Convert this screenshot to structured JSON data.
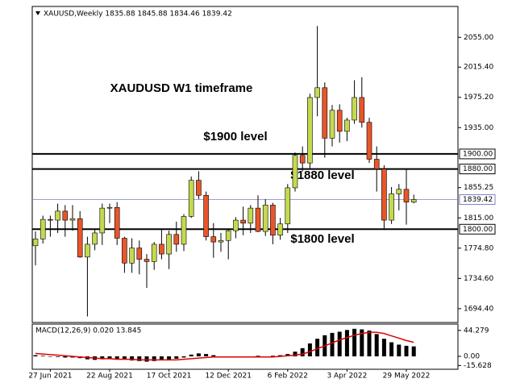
{
  "header": "XAUUSD,Weekly  1835.88 1845.88 1834.46 1839.42",
  "chart_data": [
    {
      "type": "candlestick",
      "categories": [
        null,
        null,
        "27 Jun 2021",
        null,
        null,
        null,
        null,
        null,
        null,
        null,
        "22 Aug 2021",
        null,
        null,
        null,
        null,
        null,
        null,
        null,
        "17 Oct 2021",
        null,
        null,
        null,
        null,
        null,
        null,
        null,
        "12 Dec 2021",
        null,
        null,
        null,
        null,
        null,
        null,
        null,
        "6 Feb 2022",
        null,
        null,
        null,
        null,
        null,
        null,
        null,
        "3 Apr 2022",
        null,
        null,
        null,
        null,
        null,
        null,
        null,
        "29 May 2022",
        null
      ],
      "ohlc": [
        [
          1778,
          1797,
          1752,
          1787
        ],
        [
          1787,
          1818,
          1781,
          1813
        ],
        [
          1813,
          1818,
          1790,
          1812
        ],
        [
          1812,
          1834,
          1795,
          1824
        ],
        [
          1824,
          1832,
          1790,
          1812
        ],
        [
          1812,
          1832,
          1798,
          1814
        ],
        [
          1814,
          1824,
          1762,
          1763
        ],
        [
          1763,
          1790,
          1684,
          1780
        ],
        [
          1780,
          1800,
          1772,
          1795
        ],
        [
          1795,
          1834,
          1779,
          1828
        ],
        [
          1828,
          1834,
          1808,
          1829
        ],
        [
          1829,
          1836,
          1779,
          1788
        ],
        [
          1788,
          1790,
          1742,
          1755
        ],
        [
          1755,
          1788,
          1742,
          1775
        ],
        [
          1775,
          1785,
          1740,
          1760
        ],
        [
          1760,
          1767,
          1722,
          1757
        ],
        [
          1757,
          1783,
          1746,
          1780
        ],
        [
          1780,
          1800,
          1760,
          1767
        ],
        [
          1767,
          1798,
          1747,
          1793
        ],
        [
          1793,
          1810,
          1770,
          1780
        ],
        [
          1780,
          1820,
          1771,
          1817
        ],
        [
          1817,
          1870,
          1815,
          1865
        ],
        [
          1865,
          1877,
          1840,
          1845
        ],
        [
          1845,
          1850,
          1785,
          1790
        ],
        [
          1790,
          1808,
          1762,
          1783
        ],
        [
          1783,
          1795,
          1770,
          1785
        ],
        [
          1785,
          1800,
          1760,
          1798
        ],
        [
          1798,
          1816,
          1788,
          1812
        ],
        [
          1812,
          1830,
          1792,
          1808
        ],
        [
          1808,
          1832,
          1795,
          1828
        ],
        [
          1828,
          1845,
          1796,
          1797
        ],
        [
          1797,
          1840,
          1791,
          1832
        ],
        [
          1832,
          1835,
          1780,
          1792
        ],
        [
          1792,
          1815,
          1786,
          1807
        ],
        [
          1807,
          1860,
          1795,
          1855
        ],
        [
          1855,
          1902,
          1850,
          1898
        ],
        [
          1898,
          1910,
          1877,
          1888
        ],
        [
          1888,
          1980,
          1880,
          1975
        ],
        [
          1975,
          2070,
          1950,
          1988
        ],
        [
          1988,
          1995,
          1895,
          1921
        ],
        [
          1921,
          1965,
          1910,
          1958
        ],
        [
          1958,
          1966,
          1915,
          1930
        ],
        [
          1930,
          1948,
          1917,
          1945
        ],
        [
          1945,
          1998,
          1940,
          1975
        ],
        [
          1975,
          2002,
          1935,
          1942
        ],
        [
          1942,
          1948,
          1888,
          1893
        ],
        [
          1893,
          1910,
          1850,
          1880
        ],
        [
          1880,
          1885,
          1799,
          1812
        ],
        [
          1812,
          1856,
          1807,
          1847
        ],
        [
          1847,
          1860,
          1825,
          1853
        ],
        [
          1853,
          1879,
          1806,
          1836
        ],
        [
          1835.88,
          1845.88,
          1834.46,
          1839.42
        ]
      ],
      "bull_color": "#c5d94f",
      "bear_color": "#e8562a",
      "ylim": [
        1676,
        2096
      ],
      "yticks": [
        {
          "value": 2055,
          "label": "2055.00"
        },
        {
          "value": 2015.4,
          "label": "2015.40"
        },
        {
          "value": 1975.2,
          "label": "1975.20"
        },
        {
          "value": 1935,
          "label": "1935.00"
        },
        {
          "value": 1855.25,
          "label": "1855.25"
        },
        {
          "value": 1815,
          "label": "1815.00"
        },
        {
          "value": 1774.8,
          "label": "1774.80"
        },
        {
          "value": 1734.6,
          "label": "1734.60"
        },
        {
          "value": 1694.4,
          "label": "1694.40"
        }
      ],
      "levels": [
        {
          "value": 1900,
          "label": "1900.00"
        },
        {
          "value": 1880,
          "label": "1880.00"
        },
        {
          "value": 1800,
          "label": "1800.00"
        }
      ],
      "current_price": {
        "value": 1839.42,
        "label": "1839.42"
      },
      "annotations": [
        "XAUDUSD W1 timeframe",
        "$1900 level",
        "$1880 level",
        "$1800 level"
      ]
    },
    {
      "type": "macd",
      "title": "MACD(12,26,9) 0.020 13.845",
      "histogram": [
        2,
        1,
        0,
        -1,
        -2,
        -2,
        -3,
        -5,
        -6,
        -5,
        -4,
        -4,
        -5,
        -7,
        -8,
        -9,
        -8,
        -6,
        -5,
        -4,
        -2,
        3,
        5,
        4,
        2,
        0,
        -1,
        -2,
        -1,
        0,
        1,
        0,
        1,
        2,
        4,
        8,
        14,
        22,
        30,
        36,
        40,
        42,
        45,
        47,
        46,
        44,
        38,
        30,
        24,
        20,
        18,
        17
      ],
      "signal": [
        5,
        4,
        3,
        2,
        1,
        0,
        -1,
        -2,
        -3,
        -4,
        -4,
        -5,
        -5,
        -5,
        -6,
        -6,
        -6,
        -6,
        -6,
        -6,
        -5,
        -4,
        -3,
        -2,
        -1,
        -1,
        -1,
        -1,
        -1,
        -1,
        -1,
        -1,
        -1,
        0,
        1,
        2,
        4,
        8,
        13,
        18,
        23,
        28,
        32,
        36,
        39,
        41,
        41,
        39,
        35,
        31,
        27,
        24
      ],
      "signal_color": "#e00000",
      "ylim": [
        -22,
        55
      ],
      "yticks": [
        44.279,
        {
          "value": 0,
          "label": "0.00"
        },
        -15.628
      ]
    }
  ]
}
